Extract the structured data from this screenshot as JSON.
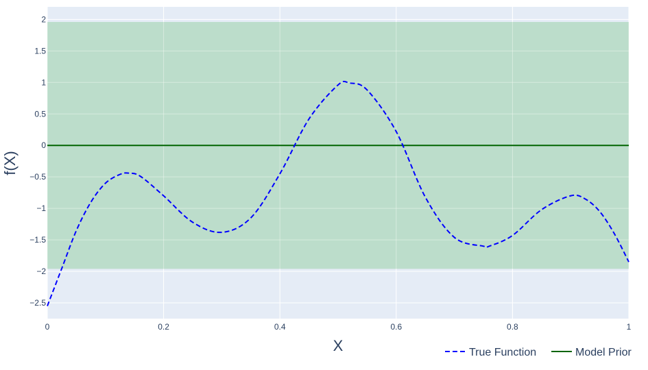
{
  "chart_data": {
    "type": "line",
    "title": "",
    "xlabel": "X",
    "ylabel": "f(X)",
    "xlim": [
      0,
      1
    ],
    "ylim": [
      -2.75,
      2.2
    ],
    "x_ticks": [
      0,
      0.2,
      0.4,
      0.6,
      0.8,
      1
    ],
    "x_tick_labels": [
      "0",
      "0.2",
      "0.4",
      "0.6",
      "0.8",
      "1"
    ],
    "y_ticks": [
      2,
      1.5,
      1,
      0.5,
      0,
      -0.5,
      -1,
      -1.5,
      -2,
      -2.5
    ],
    "y_tick_labels": [
      "2",
      "1.5",
      "1",
      "0.5",
      "0",
      "−0.5",
      "−1",
      "−1.5",
      "−2",
      "−2.5"
    ],
    "grid": true,
    "legend_placement": "bottom-right",
    "band": {
      "y_low": -1.96,
      "y_high": 1.96,
      "color": "#b5dac3"
    },
    "series": [
      {
        "name": "True Function",
        "style": "dashed",
        "color": "#0000ff",
        "x": [
          0,
          0.025,
          0.05,
          0.075,
          0.1,
          0.125,
          0.14,
          0.16,
          0.2,
          0.25,
          0.3,
          0.35,
          0.4,
          0.45,
          0.5,
          0.52,
          0.55,
          0.6,
          0.65,
          0.7,
          0.75,
          0.76,
          0.8,
          0.85,
          0.9,
          0.925,
          0.95,
          0.975,
          1.0
        ],
        "y": [
          -2.55,
          -1.95,
          -1.35,
          -0.9,
          -0.6,
          -0.46,
          -0.44,
          -0.49,
          -0.8,
          -1.22,
          -1.38,
          -1.15,
          -0.45,
          0.42,
          0.96,
          0.99,
          0.88,
          0.22,
          -0.82,
          -1.46,
          -1.6,
          -1.6,
          -1.43,
          -1.02,
          -0.8,
          -0.85,
          -1.05,
          -1.4,
          -1.85
        ]
      },
      {
        "name": "Model Prior",
        "style": "solid",
        "color": "#006400",
        "x": [
          0,
          1
        ],
        "y": [
          0,
          0
        ]
      }
    ]
  },
  "colors": {
    "plot_bg": "#e5ecf6",
    "grid": "#ffffff",
    "text": "#2a3f5f"
  }
}
